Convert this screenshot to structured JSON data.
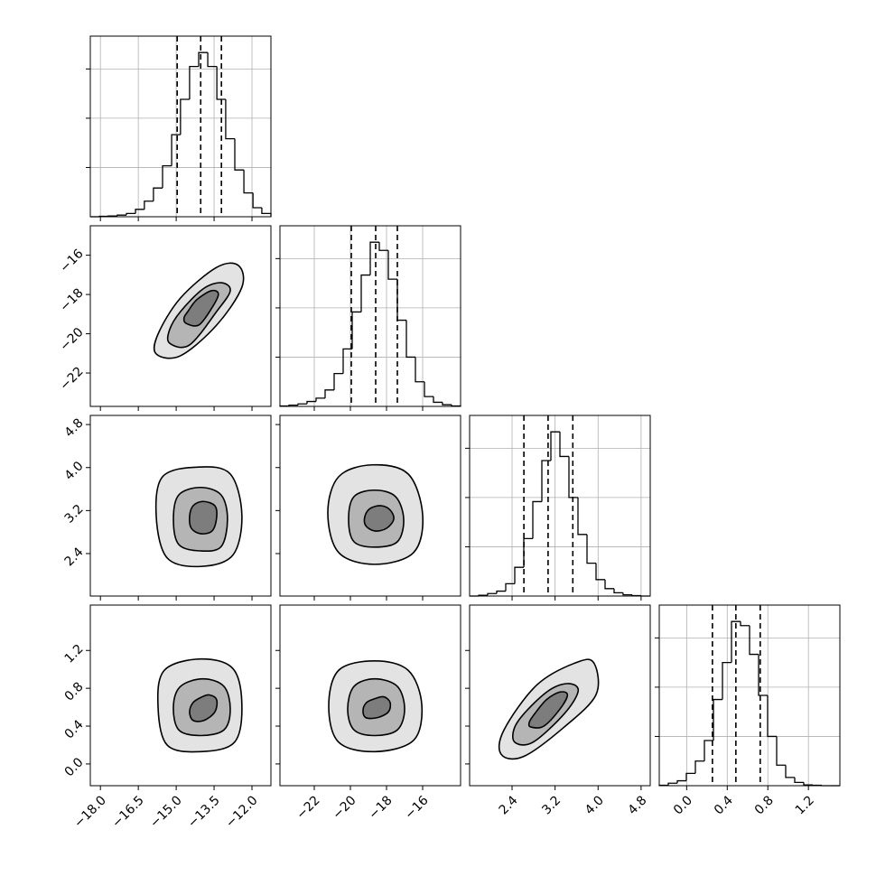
{
  "chart_data": [
    {
      "type": "histogram",
      "color": "#000000",
      "grid": true,
      "bins": [
        -18.4,
        -18.04,
        -17.69,
        -17.33,
        -16.97,
        -16.61,
        -16.26,
        -15.9,
        -15.54,
        -15.18,
        -14.83,
        -14.47,
        -14.11,
        -13.75,
        -13.39,
        -13.04,
        -12.68,
        -12.32,
        -11.96,
        -11.61,
        -11.25
      ],
      "counts": [
        0,
        5,
        10,
        20,
        40,
        90,
        190,
        350,
        620,
        1000,
        1430,
        1830,
        2000,
        1830,
        1430,
        950,
        570,
        290,
        110,
        40
      ],
      "quantiles": [
        -14.96,
        -14.03,
        -13.21
      ],
      "xlim": [
        -18.4,
        -11.25
      ],
      "ylim": [
        0,
        2200
      ],
      "xticks": [
        {
          "value": -18.0,
          "label": "−18.0"
        },
        {
          "value": -16.5,
          "label": "−16.5"
        },
        {
          "value": -15.0,
          "label": "−15.0"
        },
        {
          "value": -13.5,
          "label": "−13.5"
        },
        {
          "value": -12.0,
          "label": "−12.0"
        }
      ],
      "yticks": [
        600,
        1200,
        1800
      ]
    },
    {
      "type": "contour",
      "color": "#000000",
      "fill_colors": [
        "#e3e3e3",
        "#b5b5b5",
        "#7d7d7d"
      ],
      "xlim": [
        -18.4,
        -11.25
      ],
      "ylim": [
        -23.7,
        -14.5
      ],
      "xticks": [
        {
          "value": -18.0,
          "label": "−18.0"
        },
        {
          "value": -16.5,
          "label": "−16.5"
        },
        {
          "value": -15.0,
          "label": "−15.0"
        },
        {
          "value": -13.5,
          "label": "−13.5"
        },
        {
          "value": -12.0,
          "label": "−12.0"
        }
      ],
      "yticks": [
        {
          "value": -22,
          "label": "−22"
        },
        {
          "value": -20,
          "label": "−20"
        },
        {
          "value": -18,
          "label": "−18"
        },
        {
          "value": -16,
          "label": "−16"
        }
      ],
      "contours": [
        {
          "x": [
            -15.79,
            -14.83,
            -13.4,
            -12.4,
            -12.54,
            -13.4,
            -14.83,
            -15.72
          ],
          "y": [
            -21.03,
            -21.12,
            -19.56,
            -17.63,
            -16.52,
            -16.62,
            -18.18,
            -20.02
          ]
        },
        {
          "x": [
            -15.26,
            -14.47,
            -13.4,
            -12.86,
            -13.22,
            -13.94,
            -14.83,
            -15.26
          ],
          "y": [
            -20.48,
            -20.57,
            -18.87,
            -17.81,
            -17.4,
            -17.72,
            -18.87,
            -19.79
          ]
        },
        {
          "x": [
            -14.61,
            -14.11,
            -13.61,
            -13.33,
            -13.61,
            -14.19,
            -14.54,
            -14.69
          ],
          "y": [
            -19.47,
            -19.56,
            -18.73,
            -17.99,
            -17.81,
            -18.27,
            -18.87,
            -19.19
          ]
        }
      ]
    },
    {
      "type": "histogram",
      "color": "#000000",
      "grid": true,
      "bins": [
        -23.9,
        -23.4,
        -22.9,
        -22.4,
        -21.9,
        -21.4,
        -20.9,
        -20.4,
        -19.9,
        -19.4,
        -18.9,
        -18.4,
        -17.9,
        -17.4,
        -16.9,
        -16.4,
        -15.9,
        -15.4,
        -14.9,
        -14.4,
        -13.9
      ],
      "counts": [
        5,
        15,
        30,
        60,
        100,
        200,
        400,
        700,
        1150,
        1600,
        2000,
        1900,
        1550,
        1050,
        600,
        300,
        120,
        50,
        20,
        5
      ],
      "quantiles": [
        -19.95,
        -18.6,
        -17.4
      ],
      "xlim": [
        -23.9,
        -13.9
      ],
      "ylim": [
        0,
        2200
      ],
      "xticks": [
        {
          "value": -22,
          "label": "−22"
        },
        {
          "value": -20,
          "label": "−20"
        },
        {
          "value": -18,
          "label": "−18"
        },
        {
          "value": -16,
          "label": "−16"
        }
      ],
      "yticks": [
        600,
        1200,
        1800
      ]
    },
    {
      "type": "contour",
      "color": "#000000",
      "fill_colors": [
        "#e3e3e3",
        "#b5b5b5",
        "#7d7d7d"
      ],
      "xlim": [
        -18.4,
        -11.25
      ],
      "ylim": [
        1.61,
        4.97
      ],
      "xticks": [
        {
          "value": -18.0,
          "label": "−18.0"
        },
        {
          "value": -16.5,
          "label": "−16.5"
        },
        {
          "value": -15.0,
          "label": "−15.0"
        },
        {
          "value": -13.5,
          "label": "−13.5"
        },
        {
          "value": -12.0,
          "label": "−12.0"
        }
      ],
      "yticks": [
        2.4,
        3.2,
        {
          "value": 4.0,
          "label": "4.0"
        },
        4.8
      ],
      "contours": [
        {
          "x": [
            -14.11,
            -12.86,
            -12.4,
            -12.76,
            -14.04,
            -15.36,
            -15.79,
            -15.54
          ],
          "y": [
            4.01,
            3.88,
            3.12,
            2.37,
            2.16,
            2.32,
            3.09,
            3.83
          ]
        },
        {
          "x": [
            -14.04,
            -13.22,
            -12.97,
            -13.22,
            -14.04,
            -14.9,
            -15.11,
            -14.9
          ],
          "y": [
            3.63,
            3.49,
            3.04,
            2.53,
            2.45,
            2.57,
            3.04,
            3.49
          ]
        },
        {
          "x": [
            -13.94,
            -13.47,
            -13.4,
            -13.58,
            -14.04,
            -14.4,
            -14.47,
            -14.33
          ],
          "y": [
            3.37,
            3.29,
            3.07,
            2.82,
            2.77,
            2.87,
            3.09,
            3.29
          ]
        }
      ]
    },
    {
      "type": "contour",
      "color": "#000000",
      "fill_colors": [
        "#e3e3e3",
        "#b5b5b5",
        "#7d7d7d"
      ],
      "xlim": [
        -23.9,
        -13.9
      ],
      "ylim": [
        1.61,
        4.97
      ],
      "xticks": [
        {
          "value": -22,
          "label": "−22"
        },
        {
          "value": -20,
          "label": "−20"
        },
        {
          "value": -18,
          "label": "−18"
        },
        {
          "value": -16,
          "label": "−16"
        }
      ],
      "yticks": [
        2.4,
        3.2,
        {
          "value": 4.0,
          "label": "4.0"
        },
        4.8
      ],
      "contours": [
        {
          "x": [
            -18.8,
            -16.8,
            -16.0,
            -16.5,
            -18.65,
            -20.65,
            -21.25,
            -20.65
          ],
          "y": [
            4.05,
            3.88,
            3.12,
            2.42,
            2.2,
            2.42,
            3.16,
            3.83
          ]
        },
        {
          "x": [
            -18.65,
            -17.5,
            -17.05,
            -17.4,
            -18.65,
            -19.8,
            -20.1,
            -19.8
          ],
          "y": [
            3.58,
            3.46,
            3.04,
            2.62,
            2.52,
            2.62,
            3.04,
            3.46
          ]
        },
        {
          "x": [
            -18.3,
            -17.8,
            -17.6,
            -18.0,
            -18.65,
            -19.15,
            -19.2,
            -18.9
          ],
          "y": [
            3.29,
            3.21,
            3.04,
            2.87,
            2.82,
            2.92,
            3.09,
            3.24
          ]
        }
      ]
    },
    {
      "type": "histogram",
      "color": "#000000",
      "grid": true,
      "bins": [
        1.61,
        1.778,
        1.946,
        2.114,
        2.282,
        2.45,
        2.618,
        2.786,
        2.954,
        3.122,
        3.29,
        3.458,
        3.626,
        3.794,
        3.962,
        4.13,
        4.298,
        4.466,
        4.634,
        4.802,
        4.97
      ],
      "counts": [
        0,
        10,
        30,
        60,
        150,
        350,
        700,
        1150,
        1650,
        2000,
        1700,
        1200,
        750,
        400,
        200,
        90,
        40,
        15,
        5,
        0
      ],
      "quantiles": [
        2.62,
        3.07,
        3.53
      ],
      "xlim": [
        1.61,
        4.97
      ],
      "ylim": [
        0,
        2200
      ],
      "xticks": [
        2.4,
        3.2,
        {
          "value": 4.0,
          "label": "4.0"
        },
        4.8
      ],
      "yticks": [
        600,
        1200,
        1800
      ]
    },
    {
      "type": "contour",
      "color": "#000000",
      "fill_colors": [
        "#e3e3e3",
        "#b5b5b5",
        "#7d7d7d"
      ],
      "xlim": [
        -18.4,
        -11.25
      ],
      "ylim": [
        -0.23,
        1.68
      ],
      "xticks": [
        {
          "value": -18.0,
          "label": "−18.0"
        },
        {
          "value": -16.5,
          "label": "−16.5"
        },
        {
          "value": -15.0,
          "label": "−15.0"
        },
        {
          "value": -13.5,
          "label": "−13.5"
        },
        {
          "value": -12.0,
          "label": "−12.0"
        }
      ],
      "yticks": [
        {
          "value": 0.0,
          "label": "0.0"
        },
        0.4,
        0.8,
        1.2
      ],
      "contours": [
        {
          "x": [
            -14.04,
            -12.76,
            -12.4,
            -12.69,
            -14.04,
            -15.36,
            -15.72,
            -15.47
          ],
          "y": [
            1.11,
            1.01,
            0.63,
            0.23,
            0.13,
            0.2,
            0.61,
            0.99
          ]
        },
        {
          "x": [
            -13.94,
            -13.11,
            -12.86,
            -13.11,
            -14.04,
            -14.9,
            -15.11,
            -14.83
          ],
          "y": [
            0.9,
            0.82,
            0.58,
            0.36,
            0.3,
            0.36,
            0.61,
            0.82
          ]
        },
        {
          "x": [
            -13.69,
            -13.4,
            -13.47,
            -13.9,
            -14.33,
            -14.47,
            -14.33,
            -13.97
          ],
          "y": [
            0.73,
            0.68,
            0.55,
            0.46,
            0.46,
            0.55,
            0.65,
            0.71
          ]
        }
      ]
    },
    {
      "type": "contour",
      "color": "#000000",
      "fill_colors": [
        "#e3e3e3",
        "#b5b5b5",
        "#7d7d7d"
      ],
      "xlim": [
        -23.9,
        -13.9
      ],
      "ylim": [
        -0.23,
        1.68
      ],
      "xticks": [
        {
          "value": -22,
          "label": "−22"
        },
        {
          "value": -20,
          "label": "−20"
        },
        {
          "value": -18,
          "label": "−18"
        },
        {
          "value": -16,
          "label": "−16"
        }
      ],
      "yticks": [
        {
          "value": 0.0,
          "label": "0.0"
        },
        0.4,
        0.8,
        1.2
      ],
      "contours": [
        {
          "x": [
            -18.65,
            -16.8,
            -16.05,
            -16.5,
            -18.65,
            -20.65,
            -21.2,
            -20.65
          ],
          "y": [
            1.09,
            0.99,
            0.63,
            0.25,
            0.13,
            0.23,
            0.61,
            0.99
          ]
        },
        {
          "x": [
            -18.65,
            -17.4,
            -17.0,
            -17.4,
            -18.65,
            -19.8,
            -20.15,
            -19.8
          ],
          "y": [
            0.9,
            0.82,
            0.58,
            0.36,
            0.3,
            0.36,
            0.58,
            0.82
          ]
        },
        {
          "x": [
            -18.15,
            -17.8,
            -17.9,
            -18.5,
            -19.15,
            -19.3,
            -19.1,
            -18.65
          ],
          "y": [
            0.71,
            0.65,
            0.55,
            0.49,
            0.49,
            0.57,
            0.65,
            0.69
          ]
        }
      ]
    },
    {
      "type": "contour",
      "color": "#000000",
      "fill_colors": [
        "#e3e3e3",
        "#b5b5b5",
        "#7d7d7d"
      ],
      "xlim": [
        1.61,
        4.97
      ],
      "ylim": [
        -0.23,
        1.68
      ],
      "xticks": [
        2.4,
        3.2,
        {
          "value": 4.0,
          "label": "4.0"
        },
        4.8
      ],
      "yticks": [
        {
          "value": 0.0,
          "label": "0.0"
        },
        0.4,
        0.8,
        1.2
      ],
      "contours": [
        {
          "x": [
            2.2,
            2.62,
            3.37,
            3.96,
            3.93,
            3.63,
            2.87,
            2.25
          ],
          "y": [
            0.1,
            0.08,
            0.39,
            0.73,
            1.06,
            1.08,
            0.84,
            0.36
          ]
        },
        {
          "x": [
            2.45,
            2.79,
            3.37,
            3.63,
            3.46,
            3.12,
            2.7,
            2.45
          ],
          "y": [
            0.23,
            0.23,
            0.53,
            0.77,
            0.85,
            0.79,
            0.58,
            0.39
          ]
        },
        {
          "x": [
            2.75,
            2.99,
            3.29,
            3.43,
            3.29,
            3.04,
            2.82,
            2.72
          ],
          "y": [
            0.39,
            0.4,
            0.58,
            0.73,
            0.76,
            0.68,
            0.53,
            0.44
          ]
        }
      ]
    },
    {
      "type": "histogram",
      "color": "#000000",
      "grid": true,
      "bins": [
        -0.27,
        -0.181,
        -0.092,
        -0.003,
        0.086,
        0.175,
        0.264,
        0.353,
        0.442,
        0.531,
        0.62,
        0.709,
        0.798,
        0.887,
        0.976,
        1.065,
        1.154,
        1.243,
        1.332,
        1.421,
        1.51
      ],
      "counts": [
        5,
        30,
        60,
        150,
        300,
        550,
        1050,
        1500,
        2000,
        1950,
        1600,
        1100,
        600,
        250,
        100,
        40,
        10,
        5,
        0,
        0
      ],
      "quantiles": [
        0.254,
        0.485,
        0.725
      ],
      "xlim": [
        -0.27,
        1.51
      ],
      "ylim": [
        0,
        2200
      ],
      "xticks": [
        {
          "value": 0.0,
          "label": "0.0"
        },
        0.4,
        0.8,
        1.2
      ],
      "yticks": [
        600,
        1200,
        1800
      ]
    }
  ]
}
